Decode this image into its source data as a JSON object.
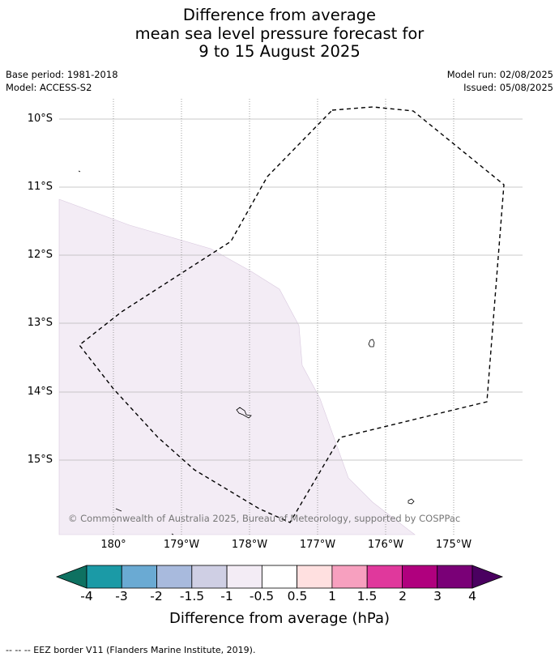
{
  "title": {
    "line1": "Difference from average",
    "line2": "mean sea level pressure forecast for",
    "line3": "9 to 15 August 2025"
  },
  "meta": {
    "base_period": "Base period: 1981-2018",
    "model": "Model: ACCESS-S2",
    "model_run": "Model run: 02/08/2025",
    "issued": "Issued: 05/08/2025"
  },
  "map": {
    "lat_labels": [
      "10°S",
      "11°S",
      "12°S",
      "13°S",
      "14°S",
      "15°S"
    ],
    "lon_labels": [
      "180°",
      "179°W",
      "178°W",
      "177°W",
      "176°W",
      "175°W"
    ],
    "anomaly_region_color": "#f3ecf5",
    "copyright": "© Commonwealth of Australia 2025, Bureau of Meteorology, supported by COSPPac"
  },
  "colorbar": {
    "title": "Difference from average (hPa)",
    "labels": [
      "-4",
      "-3",
      "-2",
      "-1.5",
      "-1",
      "-0.5",
      "0.5",
      "1",
      "1.5",
      "2",
      "3",
      "4"
    ],
    "colors": [
      "#0e7161",
      "#1b9aa6",
      "#6aaad3",
      "#a8badd",
      "#cfcfe4",
      "#f3ecf5",
      "#ffffff",
      "#ffe0e0",
      "#f7a0bf",
      "#e0389c",
      "#b0007e",
      "#7a0077",
      "#4a0060"
    ]
  },
  "footer": {
    "legend": "--  --  -- EEZ border V11 (Flanders Marine Institute, 2019)."
  }
}
